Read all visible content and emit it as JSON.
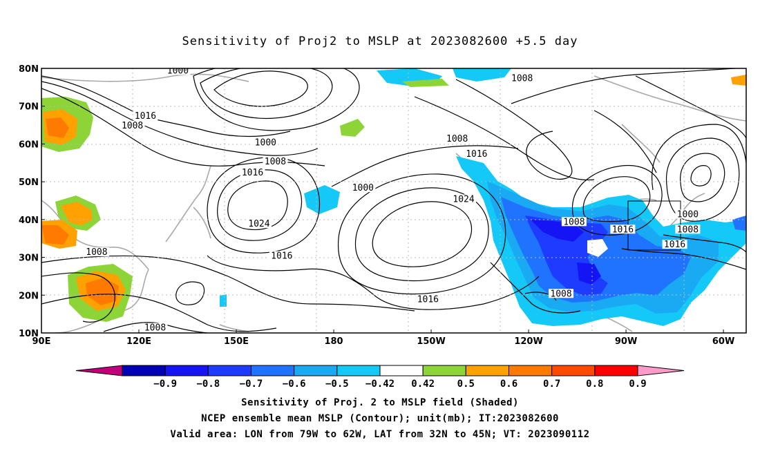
{
  "title": "Sensitivity of Proj2 to MSLP at 2023082600 +5.5 day",
  "map": {
    "lat_ticks": [
      "80N",
      "70N",
      "60N",
      "50N",
      "40N",
      "30N",
      "20N",
      "10N"
    ],
    "lon_ticks": [
      "90E",
      "120E",
      "150E",
      "180",
      "150W",
      "120W",
      "90W",
      "60W"
    ],
    "contour_labels": [
      {
        "text": "1000",
        "lon": 132,
        "lat": 79
      },
      {
        "text": "1008",
        "lon": 238,
        "lat": 77
      },
      {
        "text": "1016",
        "lon": 122,
        "lat": 67
      },
      {
        "text": "1008",
        "lon": 118,
        "lat": 64.5
      },
      {
        "text": "1000",
        "lon": 159,
        "lat": 60
      },
      {
        "text": "1008",
        "lon": 162,
        "lat": 55
      },
      {
        "text": "1016",
        "lon": 155,
        "lat": 52
      },
      {
        "text": "1008",
        "lon": 218,
        "lat": 61
      },
      {
        "text": "1016",
        "lon": 224,
        "lat": 57
      },
      {
        "text": "1000",
        "lon": 189,
        "lat": 48
      },
      {
        "text": "1024",
        "lon": 220,
        "lat": 45
      },
      {
        "text": "1024",
        "lon": 157,
        "lat": 38.5
      },
      {
        "text": "1008",
        "lon": 254,
        "lat": 39
      },
      {
        "text": "1016",
        "lon": 269,
        "lat": 37
      },
      {
        "text": "1000",
        "lon": 289,
        "lat": 41
      },
      {
        "text": "1008",
        "lon": 289,
        "lat": 37
      },
      {
        "text": "1016",
        "lon": 285,
        "lat": 33
      },
      {
        "text": "1016",
        "lon": 164,
        "lat": 30
      },
      {
        "text": "1008",
        "lon": 107,
        "lat": 31
      },
      {
        "text": "1016",
        "lon": 209,
        "lat": 18.5
      },
      {
        "text": "1008",
        "lon": 250,
        "lat": 20
      },
      {
        "text": "1008",
        "lon": 125,
        "lat": 11
      }
    ]
  },
  "colorbar": {
    "colors": [
      "#c0007a",
      "#0000b4",
      "#1414f5",
      "#1e3cff",
      "#1f73ff",
      "#1aaaf3",
      "#14c8f8",
      "#ffffff",
      "#8dd438",
      "#ffa100",
      "#ff7a00",
      "#ff4a00",
      "#ff0000",
      "#ff9bca"
    ],
    "labels": [
      "−0.9",
      "−0.8",
      "−0.7",
      "−0.6",
      "−0.5",
      "−0.42",
      "0.42",
      "0.5",
      "0.6",
      "0.7",
      "0.8",
      "0.9"
    ]
  },
  "footer": {
    "line1": "Sensitivity of Proj. 2 to MSLP field (Shaded)",
    "line2": "NCEP ensemble mean MSLP (Contour); unit(mb); IT:2023082600",
    "line3": "Valid area: LON from 79W to 62W, LAT from 32N to 45N; VT: 2023090112"
  }
}
